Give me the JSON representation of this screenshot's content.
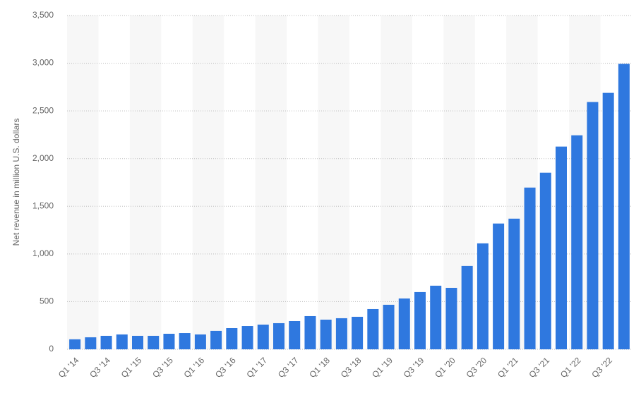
{
  "chart_data": {
    "type": "bar",
    "y_label": "Net revenue in million U.S. dollars",
    "categories": [
      "Q1 '14",
      null,
      "Q3 '14",
      null,
      "Q1 '15",
      null,
      "Q3 '15",
      null,
      "Q1 '16",
      null,
      "Q3 '16",
      null,
      "Q1 '17",
      null,
      "Q3 '17",
      null,
      "Q1 '18",
      null,
      "Q3 '18",
      null,
      "Q1 '19",
      null,
      "Q3 '19",
      null,
      "Q1 '20",
      null,
      "Q3 '20",
      null,
      "Q1 '21",
      null,
      "Q3 '21",
      null,
      "Q1 '22",
      null,
      "Q3 '22",
      null
    ],
    "values": [
      105,
      126,
      141,
      156,
      141,
      141,
      163,
      170,
      156,
      193,
      222,
      244,
      259,
      274,
      296,
      348,
      311,
      326,
      341,
      422,
      467,
      533,
      600,
      667,
      644,
      874,
      1111,
      1319,
      1370,
      1696,
      1852,
      2126,
      2244,
      2593,
      2689,
      2993
    ],
    "color": "#2f78df",
    "ylim": [
      0,
      3500
    ],
    "yticks": [
      0,
      500,
      {
        "value": 1000,
        "label": "1,000"
      },
      {
        "value": 1500,
        "label": "1,500"
      },
      {
        "value": 2000,
        "label": "2,000"
      },
      {
        "value": 2500,
        "label": "2,500"
      },
      {
        "value": 3000,
        "label": "3,000"
      },
      {
        "value": 3500,
        "label": "3,500"
      }
    ],
    "grid": true
  }
}
